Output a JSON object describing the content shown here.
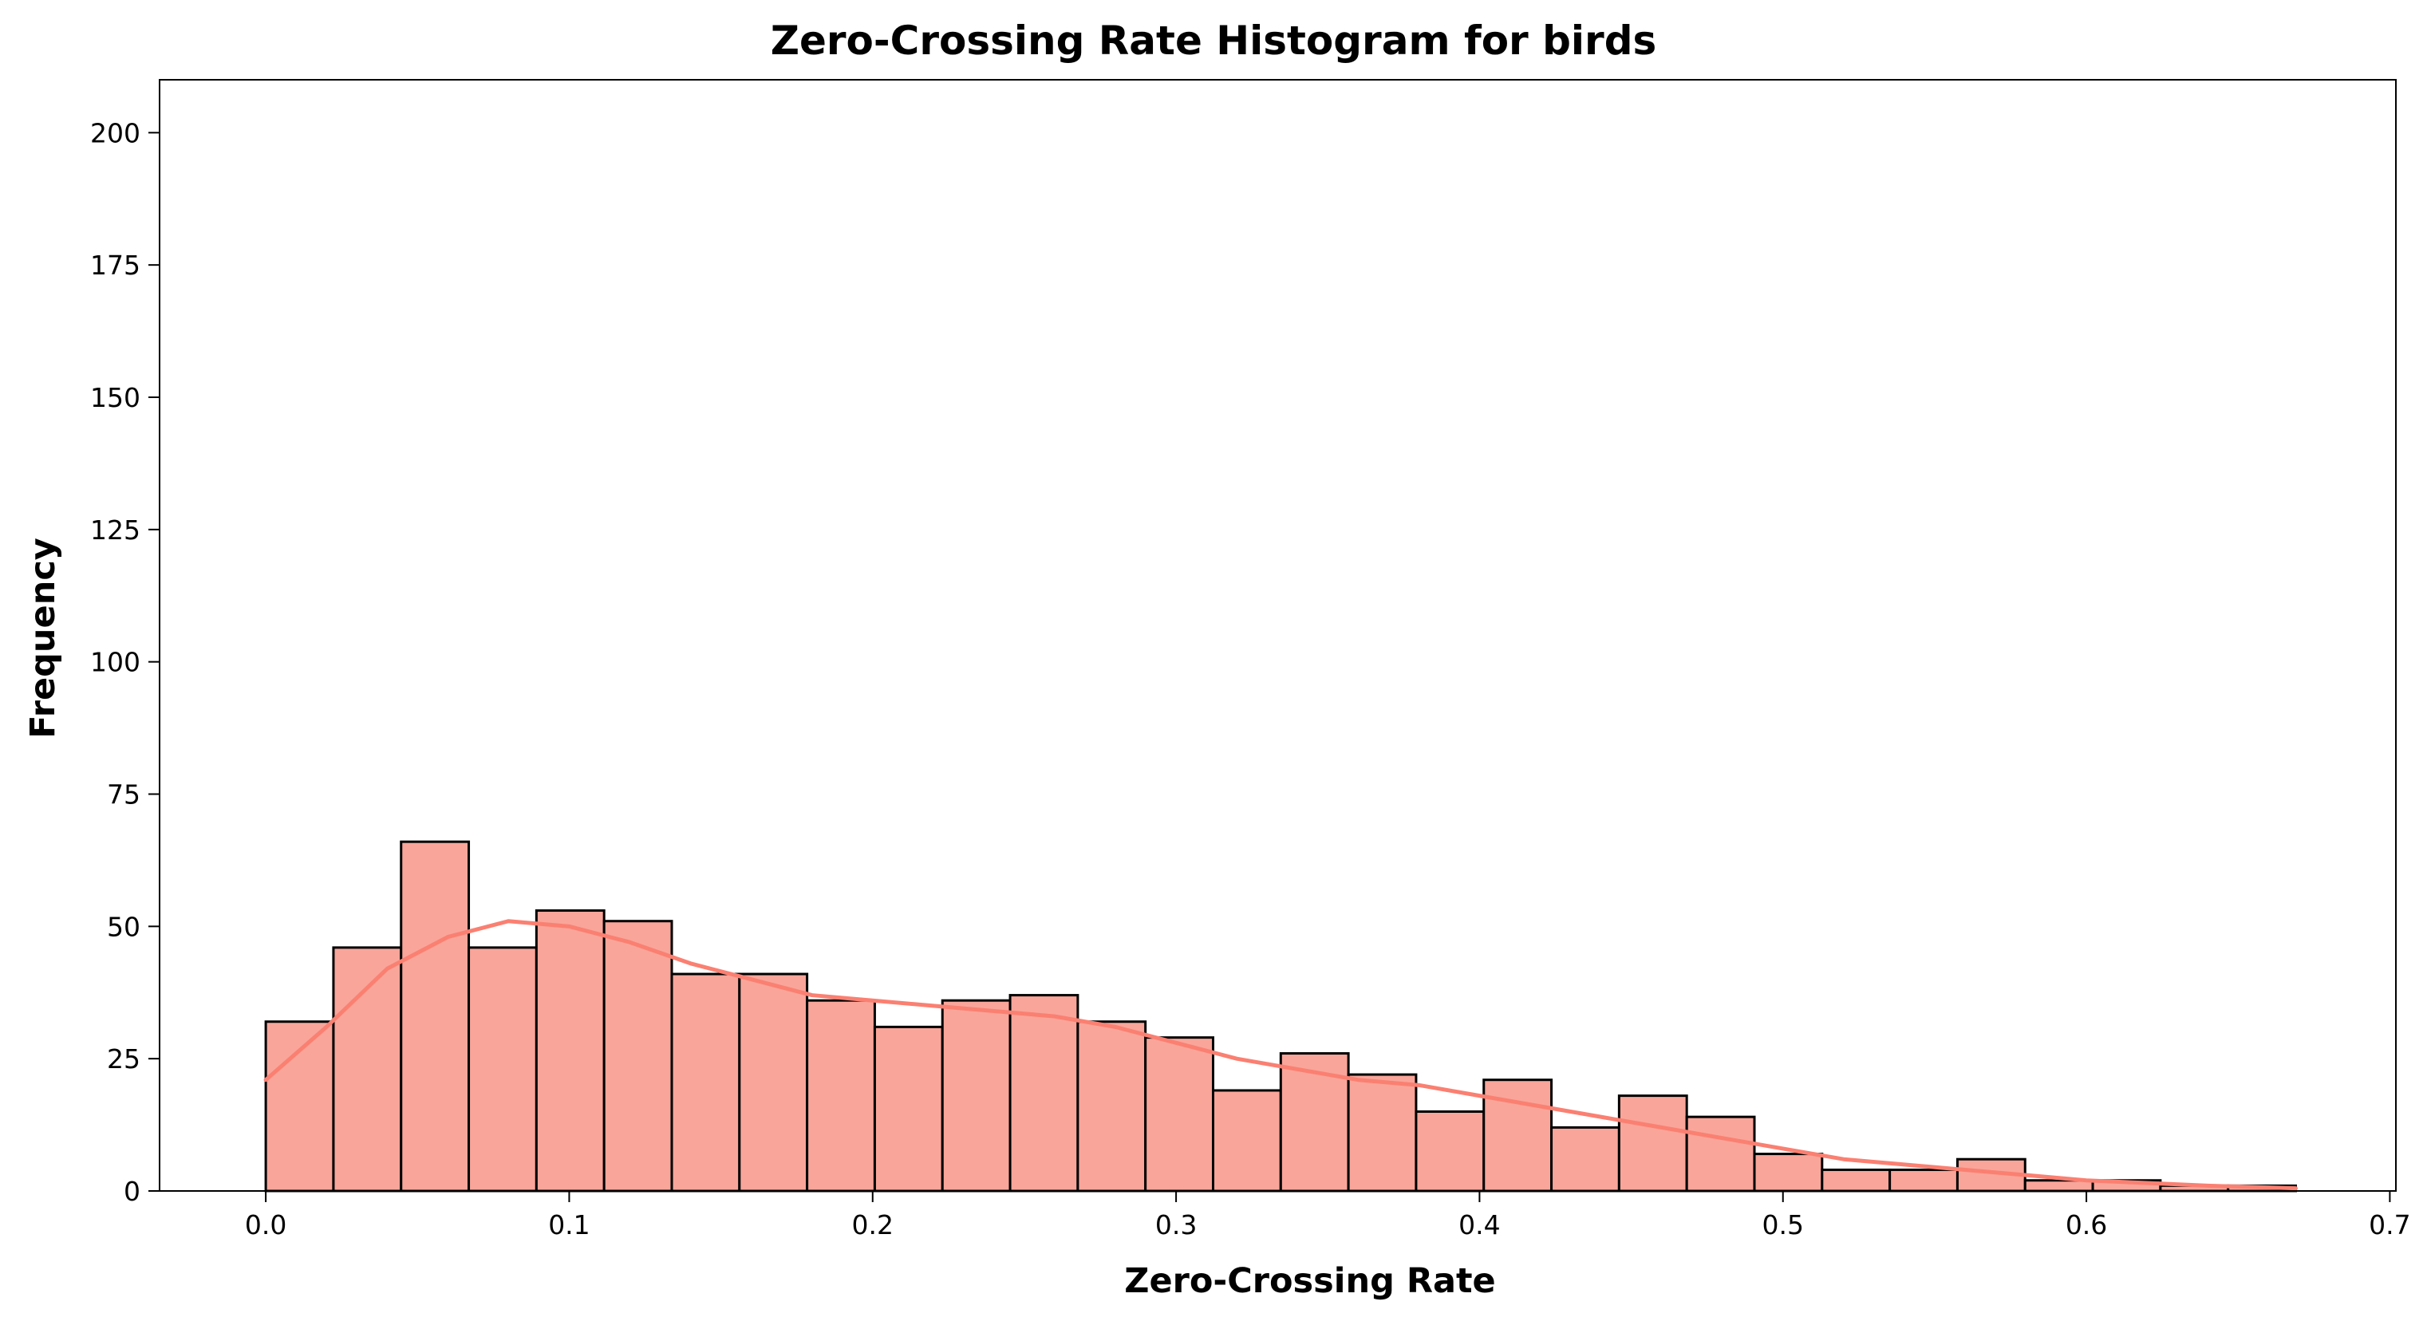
{
  "chart_data": {
    "type": "bar",
    "title": "Zero-Crossing Rate Histogram for birds",
    "xlabel": "Zero-Crossing Rate",
    "ylabel": "Frequency",
    "xlim": [
      -0.035,
      0.702
    ],
    "ylim": [
      0,
      210
    ],
    "xticks": [
      0.0,
      0.1,
      0.2,
      0.3,
      0.4,
      0.5,
      0.6,
      0.7
    ],
    "xtick_labels": [
      "0.0",
      "0.1",
      "0.2",
      "0.3",
      "0.4",
      "0.5",
      "0.6",
      "0.7"
    ],
    "yticks": [
      0,
      25,
      50,
      75,
      100,
      125,
      150,
      175,
      200
    ],
    "ytick_labels": [
      "0",
      "25",
      "50",
      "75",
      "100",
      "125",
      "150",
      "175",
      "200"
    ],
    "bin_edges": [
      0.0,
      0.0223,
      0.0446,
      0.0669,
      0.0892,
      0.1115,
      0.1338,
      0.1561,
      0.1784,
      0.2007,
      0.223,
      0.2453,
      0.2676,
      0.2899,
      0.3122,
      0.3345,
      0.3568,
      0.3791,
      0.4014,
      0.4237,
      0.446,
      0.4683,
      0.4906,
      0.5129,
      0.5352,
      0.5575,
      0.5798,
      0.6021,
      0.6244,
      0.6467,
      0.669
    ],
    "values": [
      32,
      46,
      66,
      46,
      53,
      51,
      41,
      41,
      36,
      31,
      36,
      37,
      32,
      29,
      19,
      26,
      22,
      15,
      21,
      12,
      18,
      14,
      7,
      4,
      4,
      6,
      2,
      2,
      1,
      1
    ],
    "kde": {
      "x": [
        0.0,
        0.02,
        0.04,
        0.06,
        0.08,
        0.1,
        0.12,
        0.14,
        0.16,
        0.18,
        0.2,
        0.22,
        0.24,
        0.26,
        0.28,
        0.3,
        0.32,
        0.34,
        0.36,
        0.38,
        0.4,
        0.42,
        0.44,
        0.46,
        0.48,
        0.5,
        0.52,
        0.54,
        0.56,
        0.58,
        0.6,
        0.62,
        0.64,
        0.669
      ],
      "y": [
        21,
        31,
        42,
        48,
        51,
        50,
        47,
        43,
        40,
        37,
        36,
        35,
        34,
        33,
        31,
        28,
        25,
        23,
        21,
        20,
        18,
        16,
        14,
        12,
        10,
        8,
        6,
        5,
        4,
        3,
        2,
        1.5,
        1,
        0.5
      ]
    },
    "grid": false,
    "bar_fill_color": "#F9A59A",
    "bar_edge_color": "#000000",
    "kde_color": "#FA8072"
  }
}
